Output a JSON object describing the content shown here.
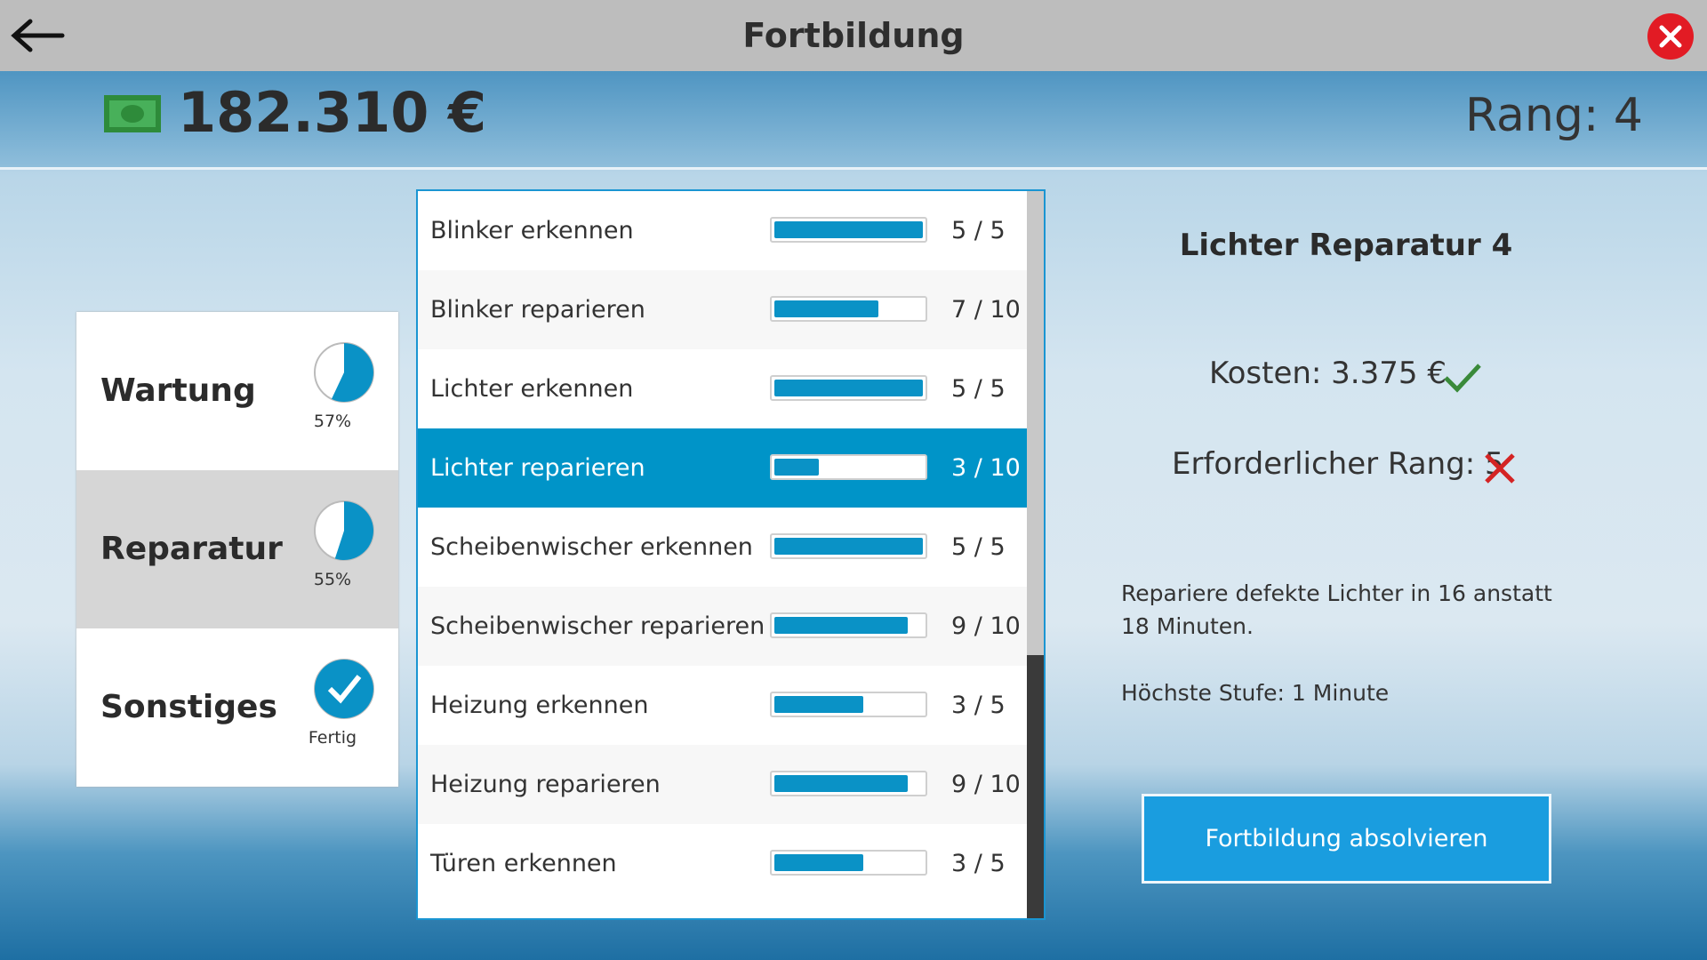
{
  "header": {
    "title": "Fortbildung"
  },
  "status": {
    "money": "182.310 €",
    "rank": "Rang: 4"
  },
  "categories": [
    {
      "name": "Wartung",
      "progress": 57,
      "label": "57%",
      "selected": false
    },
    {
      "name": "Reparatur",
      "progress": 55,
      "label": "55%",
      "selected": true
    },
    {
      "name": "Sonstiges",
      "progress": 100,
      "label": "Fertig",
      "selected": false
    }
  ],
  "skills": [
    {
      "name": "Blinker erkennen",
      "level": 5,
      "max": 5,
      "text": "5 / 5"
    },
    {
      "name": "Blinker reparieren",
      "level": 7,
      "max": 10,
      "text": "7 / 10"
    },
    {
      "name": "Lichter erkennen",
      "level": 5,
      "max": 5,
      "text": "5 / 5"
    },
    {
      "name": "Lichter reparieren",
      "level": 3,
      "max": 10,
      "text": "3 / 10",
      "selected": true
    },
    {
      "name": "Scheibenwischer erkennen",
      "level": 5,
      "max": 5,
      "text": "5 / 5"
    },
    {
      "name": "Scheibenwischer reparieren",
      "level": 9,
      "max": 10,
      "text": "9 / 10"
    },
    {
      "name": "Heizung erkennen",
      "level": 3,
      "max": 5,
      "text": "3 / 5"
    },
    {
      "name": "Heizung reparieren",
      "level": 9,
      "max": 10,
      "text": "9 / 10"
    },
    {
      "name": "Türen erkennen",
      "level": 3,
      "max": 5,
      "text": "3 / 5"
    }
  ],
  "detail": {
    "title": "Lichter Reparatur 4",
    "cost": "Kosten: 3.375 €",
    "required_rank": "Erforderlicher Rang: 5",
    "description": "Repariere defekte Lichter in 16 anstatt 18 Minuten.",
    "max_level": "Höchste Stufe: 1 Minute",
    "button": "Fortbildung absolvieren"
  }
}
